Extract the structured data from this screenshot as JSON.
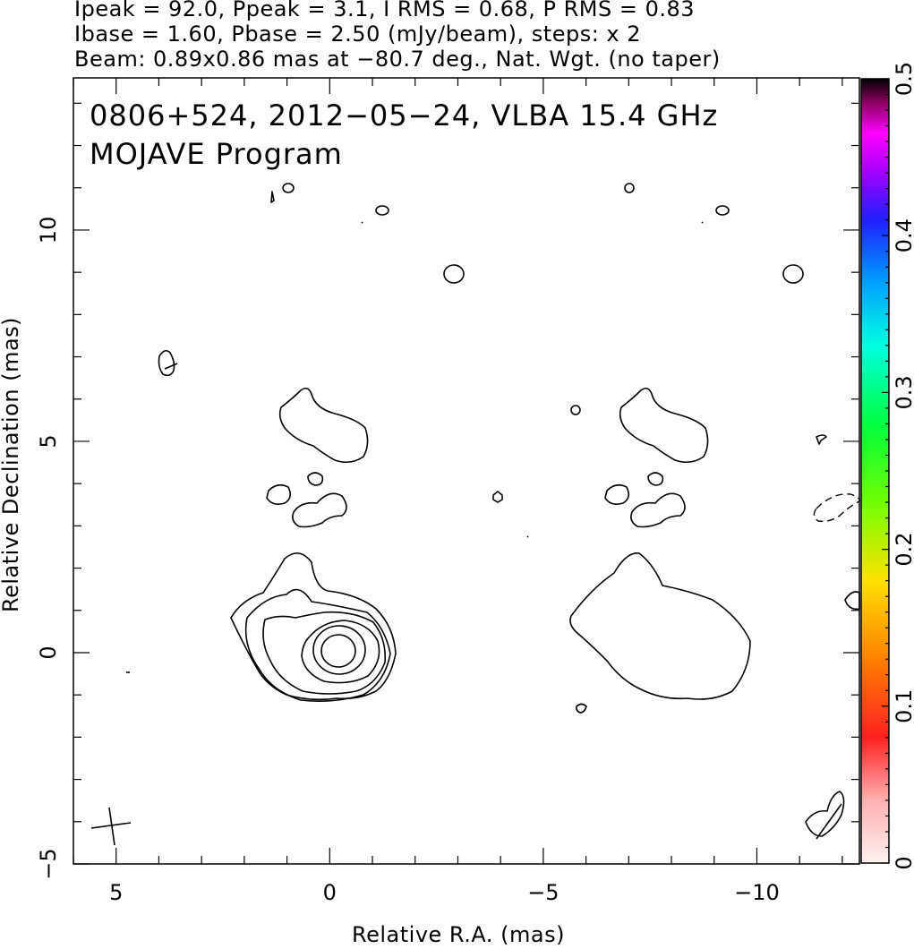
{
  "header": {
    "line1": "Ipeak = 92.0, Ppeak = 3.1, I RMS = 0.68, P RMS = 0.83",
    "line2": "Ibase = 1.60, Pbase = 2.50 (mJy/beam), steps: x 2",
    "line3": "Beam: 0.89x0.86 mas at −80.7 deg., Nat. Wgt. (no taper)"
  },
  "plot": {
    "title_line1": "0806+524, 2012−05−24, VLBA 15.4 GHz",
    "title_line2": "MOJAVE Program"
  },
  "chart_data": {
    "type": "contour",
    "xlabel": "Relative R.A. (mas)",
    "ylabel": "Relative Declination (mas)",
    "xlim": [
      6.0,
      -12.4
    ],
    "ylim": [
      -5.0,
      13.6
    ],
    "x_ticks": [
      5,
      0,
      -5,
      -10
    ],
    "x_tick_labels": [
      "5",
      "0",
      "−5",
      "−10"
    ],
    "y_ticks": [
      -5,
      0,
      5,
      10
    ],
    "y_tick_labels": [
      "−5",
      "0",
      "5",
      "10"
    ],
    "colorbar": {
      "range": [
        0,
        0.5
      ],
      "tick_values": [
        0,
        0.1,
        0.2,
        0.3,
        0.4,
        0.5
      ],
      "tick_labels": [
        "0",
        "0.1",
        "0.2",
        "0.3",
        "0.4",
        "0.5"
      ]
    },
    "image_center_mas": [
      0,
      0
    ],
    "contour_levels_mjy_per_beam": [
      1.6,
      3.2,
      6.4,
      12.8,
      25.6,
      51.2
    ],
    "beam": {
      "major_mas": 0.89,
      "minor_mas": 0.86,
      "pa_deg": -80.7
    },
    "stats": {
      "Ipeak": 92.0,
      "Ppeak": 3.1,
      "I_RMS": 0.68,
      "P_RMS": 0.83,
      "Ibase": 1.6,
      "Pbase": 2.5,
      "units": "mJy/beam",
      "step_factor": 2
    },
    "grid": false
  }
}
